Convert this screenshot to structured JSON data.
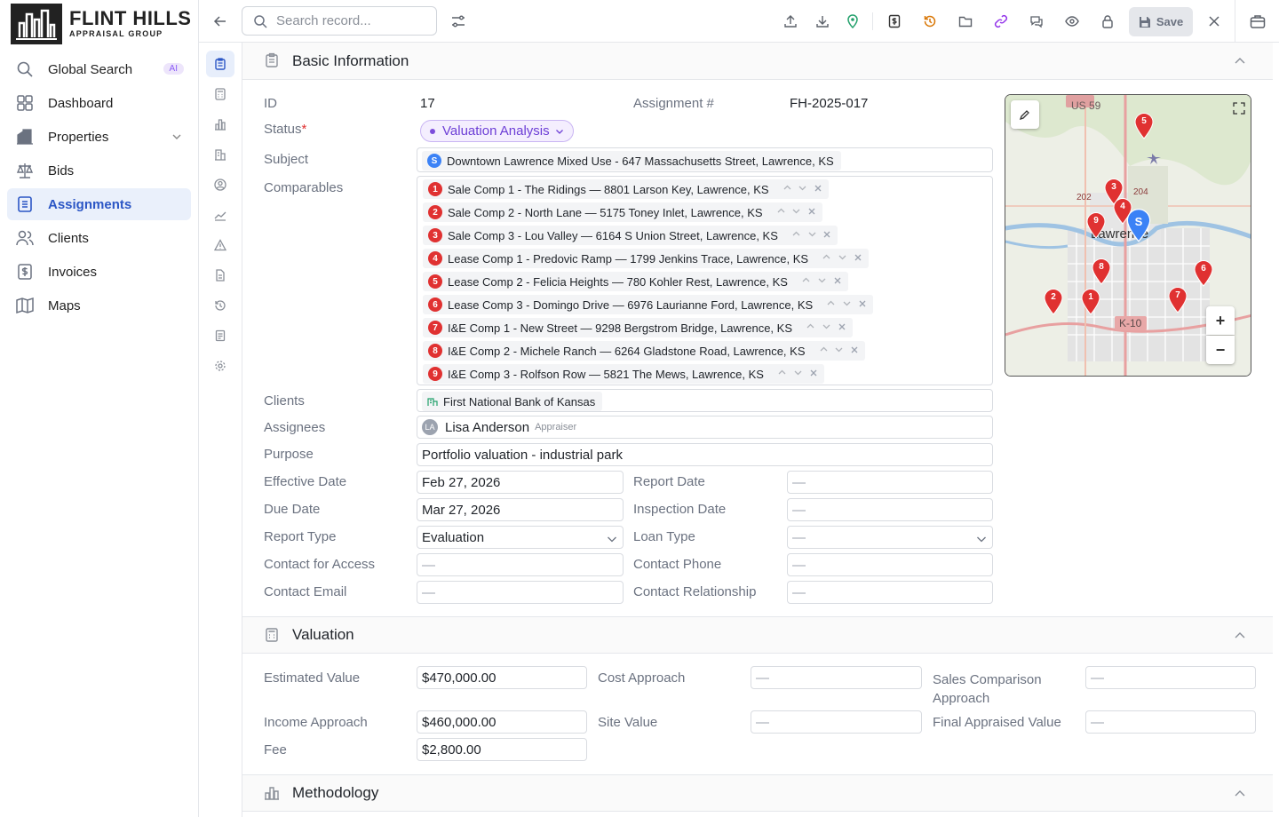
{
  "brand": {
    "title": "FLINT HILLS",
    "subtitle": "APPRAISAL GROUP"
  },
  "sidebar": {
    "items": [
      {
        "label": "Global Search",
        "icon": "search-icon",
        "badge": "AI"
      },
      {
        "label": "Dashboard",
        "icon": "dashboard-icon"
      },
      {
        "label": "Properties",
        "icon": "building-icon"
      },
      {
        "label": "Bids",
        "icon": "scale-icon"
      },
      {
        "label": "Assignments",
        "icon": "clipboard-icon",
        "active": true
      },
      {
        "label": "Clients",
        "icon": "users-icon"
      },
      {
        "label": "Invoices",
        "icon": "invoice-icon"
      },
      {
        "label": "Maps",
        "icon": "map-icon"
      }
    ]
  },
  "toolbar": {
    "search_placeholder": "Search record...",
    "save_label": "Save"
  },
  "basic": {
    "title": "Basic Information",
    "id_label": "ID",
    "id_value": "17",
    "assignment_label": "Assignment #",
    "assignment_value": "FH-2025-017",
    "status_label": "Status",
    "status_required": "*",
    "status_value": "Valuation Analysis",
    "subject_label": "Subject",
    "subject_badge": "S",
    "subject_value": "Downtown Lawrence Mixed Use - 647 Massachusetts Street, Lawrence, KS",
    "comparables_label": "Comparables",
    "comparables": [
      {
        "n": "1",
        "text": "Sale Comp 1 - The Ridings — 8801 Larson Key, Lawrence, KS"
      },
      {
        "n": "2",
        "text": "Sale Comp 2 - North Lane — 5175 Toney Inlet, Lawrence, KS"
      },
      {
        "n": "3",
        "text": "Sale Comp 3 - Lou Valley — 6164 S Union Street, Lawrence, KS"
      },
      {
        "n": "4",
        "text": "Lease Comp 1 - Predovic Ramp — 1799 Jenkins Trace, Lawrence, KS"
      },
      {
        "n": "5",
        "text": "Lease Comp 2 - Felicia Heights — 780 Kohler Rest, Lawrence, KS"
      },
      {
        "n": "6",
        "text": "Lease Comp 3 - Domingo Drive — 6976 Laurianne Ford, Lawrence, KS"
      },
      {
        "n": "7",
        "text": "I&E Comp 1 - New Street — 9298 Bergstrom Bridge, Lawrence, KS"
      },
      {
        "n": "8",
        "text": "I&E Comp 2 - Michele Ranch — 6264 Gladstone Road, Lawrence, KS"
      },
      {
        "n": "9",
        "text": "I&E Comp 3 - Rolfson Row — 5821 The Mews, Lawrence, KS"
      }
    ],
    "clients_label": "Clients",
    "clients_value": "First National Bank of Kansas",
    "assignees_label": "Assignees",
    "assignee_initials": "LA",
    "assignee_name": "Lisa Anderson",
    "assignee_role": "Appraiser",
    "purpose_label": "Purpose",
    "purpose_value": "Portfolio valuation - industrial park",
    "effective_date_label": "Effective Date",
    "effective_date_value": "Feb 27, 2026",
    "report_date_label": "Report Date",
    "report_date_value": "—",
    "due_date_label": "Due Date",
    "due_date_value": "Mar 27, 2026",
    "inspection_date_label": "Inspection Date",
    "inspection_date_value": "—",
    "report_type_label": "Report Type",
    "report_type_value": "Evaluation",
    "loan_type_label": "Loan Type",
    "loan_type_value": "—",
    "contact_access_label": "Contact for Access",
    "contact_access_value": "—",
    "contact_phone_label": "Contact Phone",
    "contact_phone_value": "—",
    "contact_email_label": "Contact Email",
    "contact_email_value": "—",
    "contact_rel_label": "Contact Relationship",
    "contact_rel_value": "—"
  },
  "map": {
    "labels": {
      "city": "Lawrence",
      "hwy1": "US 59",
      "hwy2": "K-10",
      "r1": "202",
      "r2": "204"
    },
    "zoom_in": "+",
    "zoom_out": "−",
    "markers": [
      "5",
      "3",
      "4",
      "S",
      "9",
      "8",
      "6",
      "2",
      "1",
      "7"
    ]
  },
  "valuation": {
    "title": "Valuation",
    "estimated_label": "Estimated Value",
    "estimated_value": "$470,000.00",
    "cost_label": "Cost Approach",
    "cost_value": "—",
    "sales_label_1": "Sales Comparison",
    "sales_label_2": "Approach",
    "sales_value": "—",
    "income_label": "Income Approach",
    "income_value": "$460,000.00",
    "site_label": "Site Value",
    "site_value": "—",
    "final_label": "Final Appraised Value",
    "final_value": "—",
    "fee_label": "Fee",
    "fee_value": "$2,800.00"
  },
  "methodology": {
    "title": "Methodology"
  },
  "colors": {
    "accent": "#2b56c5",
    "status": "#6d3fd6",
    "marker": "#e03131",
    "subject_marker": "#3b82f6"
  }
}
